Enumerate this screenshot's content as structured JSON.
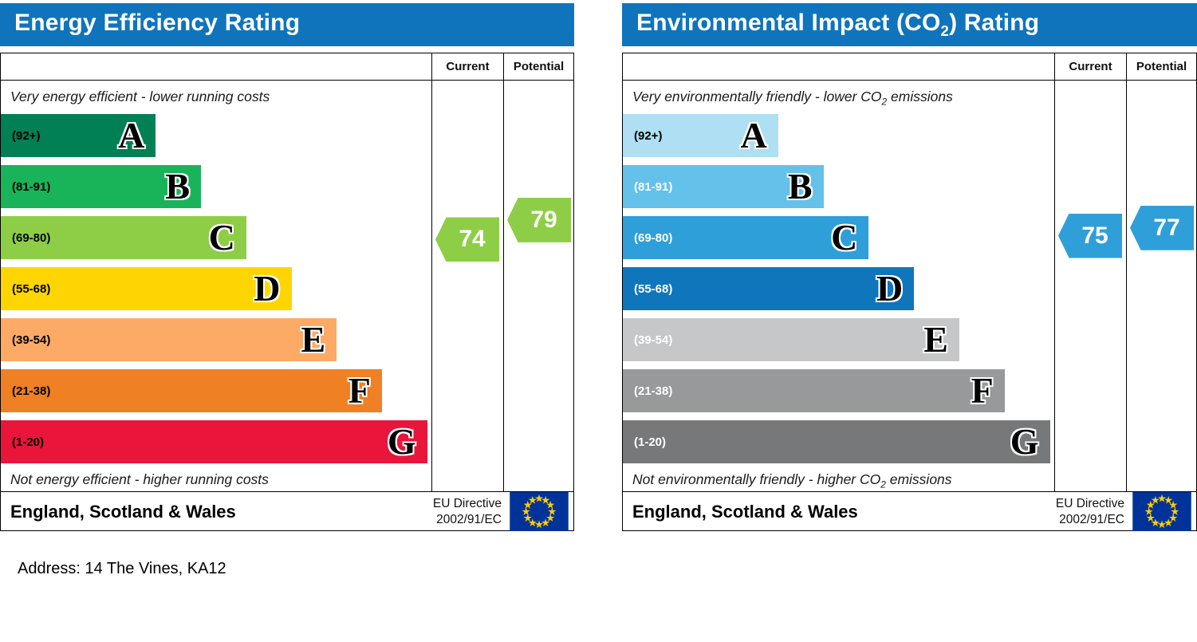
{
  "page": {
    "address_line": "Address: 14 The Vines, KA12"
  },
  "colors": {
    "title_bar": "#0f74bc",
    "title_text": "#ffffff",
    "border": "#000000",
    "eu_flag_blue": "#003399",
    "eu_flag_star": "#ffcc00"
  },
  "chart_data": [
    {
      "type": "bar",
      "variant": "energy-efficiency-rating",
      "title_pre": "Energy Efficiency Rating",
      "title_sub": "",
      "title_post": "",
      "current_header": "Current",
      "potential_header": "Potential",
      "top_caption_pre": "Very energy efficient - lower running costs",
      "top_caption_sub": "",
      "top_caption_post": "",
      "bottom_caption_pre": "Not energy efficient - higher running costs",
      "bottom_caption_sub": "",
      "bottom_caption_post": "",
      "footer_region": "England, Scotland & Wales",
      "directive_line1": "EU Directive",
      "directive_line2": "2002/91/EC",
      "current_value": 74,
      "potential_value": 79,
      "current_band": "C",
      "potential_band": "C",
      "arrow_color": "#8dce46",
      "bands": [
        {
          "letter": "A",
          "range": "(92+)",
          "low": 92,
          "high": 100,
          "color": "#008054",
          "label_color": "#000000",
          "width_pct": 36
        },
        {
          "letter": "B",
          "range": "(81-91)",
          "low": 81,
          "high": 91,
          "color": "#19b459",
          "label_color": "#000000",
          "width_pct": 46.5
        },
        {
          "letter": "C",
          "range": "(69-80)",
          "low": 69,
          "high": 80,
          "color": "#8dce46",
          "label_color": "#000000",
          "width_pct": 57
        },
        {
          "letter": "D",
          "range": "(55-68)",
          "low": 55,
          "high": 68,
          "color": "#ffd500",
          "label_color": "#000000",
          "width_pct": 67.5
        },
        {
          "letter": "E",
          "range": "(39-54)",
          "low": 39,
          "high": 54,
          "color": "#fcaa65",
          "label_color": "#000000",
          "width_pct": 78
        },
        {
          "letter": "F",
          "range": "(21-38)",
          "low": 21,
          "high": 38,
          "color": "#ef8023",
          "label_color": "#000000",
          "width_pct": 88.5
        },
        {
          "letter": "G",
          "range": "(1-20)",
          "low": 1,
          "high": 20,
          "color": "#e9153b",
          "label_color": "#000000",
          "width_pct": 99
        }
      ]
    },
    {
      "type": "bar",
      "variant": "environmental-impact-co2-rating",
      "title_pre": "Environmental Impact (CO",
      "title_sub": "2",
      "title_post": ") Rating",
      "current_header": "Current",
      "potential_header": "Potential",
      "top_caption_pre": "Very environmentally friendly - lower CO",
      "top_caption_sub": "2",
      "top_caption_post": " emissions",
      "bottom_caption_pre": "Not environmentally friendly - higher CO",
      "bottom_caption_sub": "2",
      "bottom_caption_post": " emissions",
      "footer_region": "England, Scotland & Wales",
      "directive_line1": "EU Directive",
      "directive_line2": "2002/91/EC",
      "current_value": 75,
      "potential_value": 77,
      "current_band": "C",
      "potential_band": "C",
      "arrow_color": "#2f9fda",
      "bands": [
        {
          "letter": "A",
          "range": "(92+)",
          "low": 92,
          "high": 100,
          "color": "#aedff2",
          "label_color": "#000000",
          "width_pct": 36
        },
        {
          "letter": "B",
          "range": "(81-91)",
          "low": 81,
          "high": 91,
          "color": "#63c1ea",
          "label_color": "#ffffff",
          "width_pct": 46.5
        },
        {
          "letter": "C",
          "range": "(69-80)",
          "low": 69,
          "high": 80,
          "color": "#2f9fda",
          "label_color": "#ffffff",
          "width_pct": 57
        },
        {
          "letter": "D",
          "range": "(55-68)",
          "low": 55,
          "high": 68,
          "color": "#1076bc",
          "label_color": "#ffffff",
          "width_pct": 67.5
        },
        {
          "letter": "E",
          "range": "(39-54)",
          "low": 39,
          "high": 54,
          "color": "#c6c7c9",
          "label_color": "#ffffff",
          "width_pct": 78
        },
        {
          "letter": "F",
          "range": "(21-38)",
          "low": 21,
          "high": 38,
          "color": "#97999b",
          "label_color": "#ffffff",
          "width_pct": 88.5
        },
        {
          "letter": "G",
          "range": "(1-20)",
          "low": 1,
          "high": 20,
          "color": "#76787a",
          "label_color": "#ffffff",
          "width_pct": 99
        }
      ]
    }
  ]
}
